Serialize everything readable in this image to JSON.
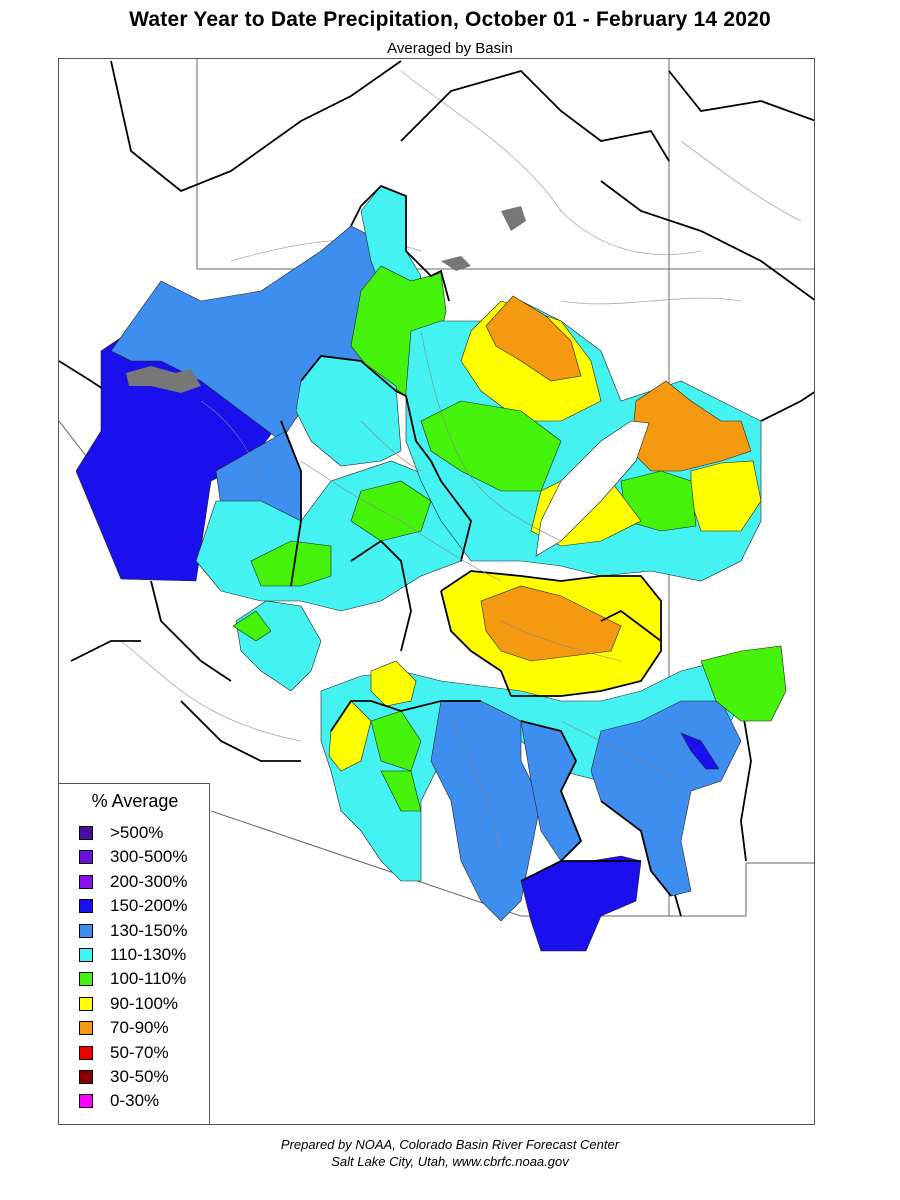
{
  "title": "Water Year to Date Precipitation, October 01  - February 14 2020",
  "subtitle": "Averaged by Basin",
  "legend": {
    "title": "% Average",
    "items": [
      {
        "label": ">500%",
        "color": "#4b0fa0"
      },
      {
        "label": "300-500%",
        "color": "#6a10d8"
      },
      {
        "label": "200-300%",
        "color": "#8a10f0"
      },
      {
        "label": "150-200%",
        "color": "#1a10ee"
      },
      {
        "label": "130-150%",
        "color": "#3e8ef0"
      },
      {
        "label": "110-130%",
        "color": "#44f2f2"
      },
      {
        "label": "100-110%",
        "color": "#44f20a"
      },
      {
        "label": "90-100%",
        "color": "#ffff00"
      },
      {
        "label": "70-90%",
        "color": "#f59a10"
      },
      {
        "label": "50-70%",
        "color": "#ee0000"
      },
      {
        "label": "30-50%",
        "color": "#8a0000"
      },
      {
        "label": "0-30%",
        "color": "#ff00ff"
      }
    ]
  },
  "credits": {
    "line1": "Prepared by NOAA, Colorado Basin River Forecast Center",
    "line2": "Salt Lake City, Utah, www.cbrfc.noaa.gov"
  },
  "colors": {
    "blue": "#3e8ef0",
    "dark_blue": "#1a10ee",
    "cyan": "#44f2f2",
    "green": "#44f20a",
    "yellow": "#ffff00",
    "orange": "#f59a10"
  }
}
